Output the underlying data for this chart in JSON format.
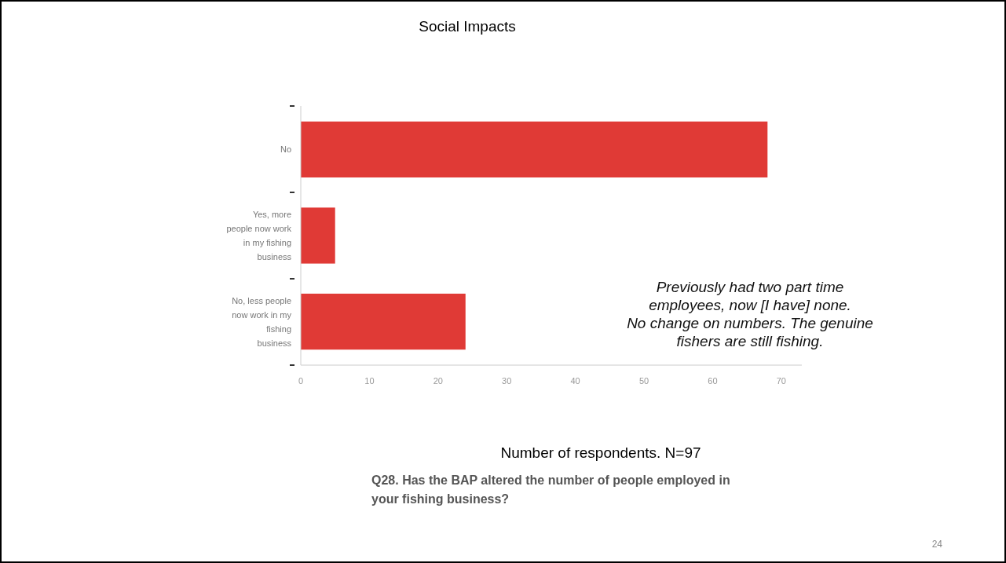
{
  "chart_data": {
    "type": "bar",
    "orientation": "horizontal",
    "title": "Social Impacts",
    "categories": [
      "No",
      "Yes, more people now work in my fishing business",
      "No, less people now work in my fishing business"
    ],
    "values": [
      68,
      5,
      24
    ],
    "color": "#e03a36",
    "xlim": [
      0,
      73
    ],
    "xticks": [
      0,
      10,
      20,
      30,
      40,
      50,
      60,
      70
    ],
    "grid": false,
    "xlabel": "Number of respondents. N=97",
    "annotations": [
      "Previously had two part time employees, now [I have] none.",
      "No change on numbers. The genuine fishers are still fishing.",
      "Q28. Has the BAP altered the number of people employed in your fishing business?",
      "24"
    ]
  }
}
